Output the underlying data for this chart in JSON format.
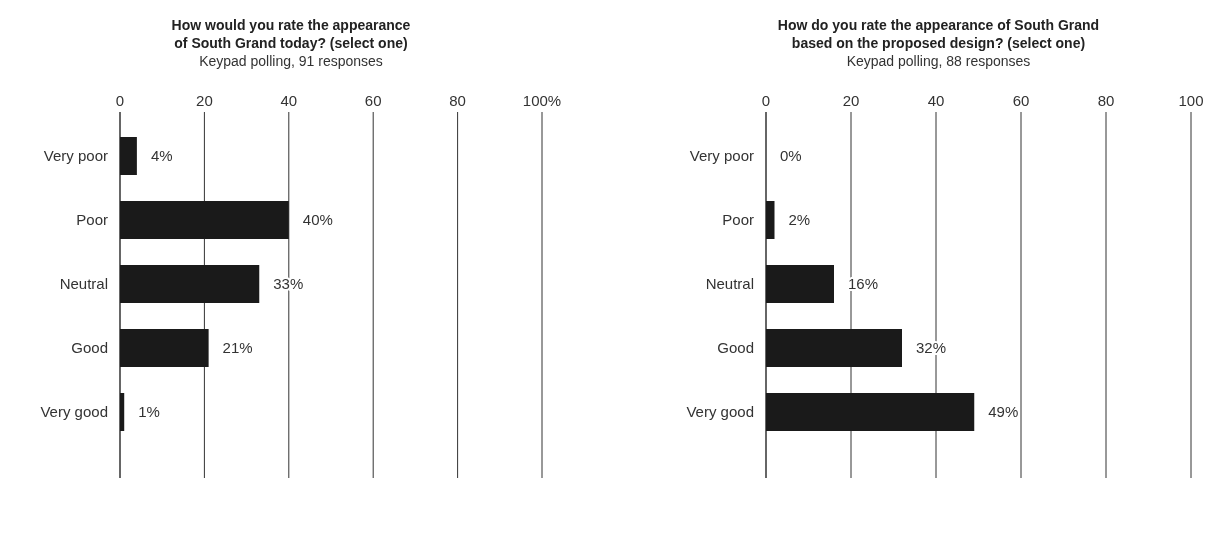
{
  "chart_data": [
    {
      "type": "bar",
      "orientation": "horizontal",
      "title": "How would you rate the appearance\nof South Grand today? (select one)",
      "subtitle": "Keypad polling, 91 responses",
      "categories": [
        "Very poor",
        "Poor",
        "Neutral",
        "Good",
        "Very good"
      ],
      "values": [
        4,
        40,
        33,
        21,
        1
      ],
      "value_labels": [
        "4%",
        "40%",
        "33%",
        "21%",
        "1%"
      ],
      "color": "#1a1a1a",
      "xlim": [
        0,
        100
      ],
      "xticks": [
        0,
        20,
        40,
        60,
        80,
        {
          "value": 100,
          "label": "100%"
        }
      ],
      "grid": "x"
    },
    {
      "type": "bar",
      "orientation": "horizontal",
      "title": "How do you rate the appearance of South Grand\nbased on the proposed design? (select one)",
      "subtitle": "Keypad polling, 88 responses",
      "categories": [
        "Very poor",
        "Poor",
        "Neutral",
        "Good",
        "Very good"
      ],
      "values": [
        0,
        2,
        16,
        32,
        49
      ],
      "value_labels": [
        "0%",
        "2%",
        "16%",
        "32%",
        "49%"
      ],
      "color": "#1a1a1a",
      "xlim": [
        0,
        100
      ],
      "xticks": [
        0,
        20,
        40,
        60,
        80,
        100
      ],
      "grid": "x"
    }
  ]
}
